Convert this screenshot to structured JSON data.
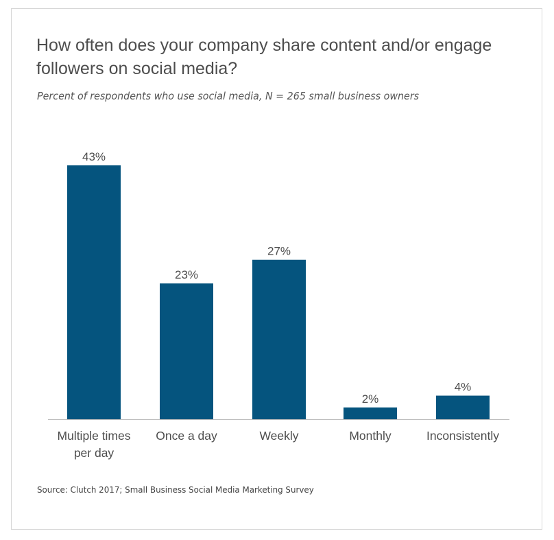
{
  "chart_data": {
    "type": "bar",
    "title": "How often does your company share content and/or engage followers on social media?",
    "subtitle": "Percent of respondents who use social media, N = 265 small business owners",
    "categories": [
      [
        "Multiple times",
        "per day"
      ],
      [
        "Once a day"
      ],
      [
        "Weekly"
      ],
      [
        "Monthly"
      ],
      [
        "Inconsistently"
      ]
    ],
    "values": [
      43,
      23,
      27,
      2,
      4
    ],
    "value_labels": [
      "43%",
      "23%",
      "27%",
      "2%",
      "4%"
    ],
    "unit": "%",
    "ylim": [
      0,
      43
    ],
    "grid": false,
    "bar_color": "#05547e",
    "source": "Source: Clutch 2017; Small Business Social Media Marketing Survey"
  }
}
